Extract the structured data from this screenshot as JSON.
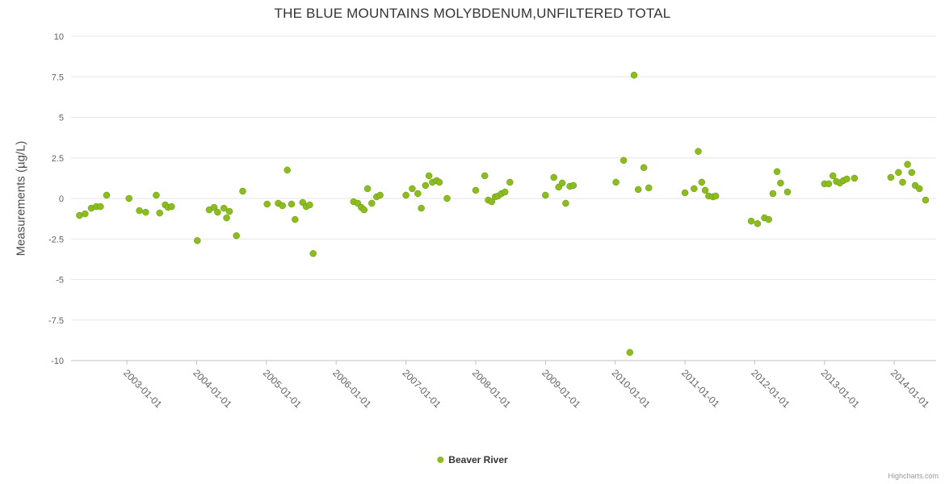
{
  "credits": "Highcharts.com",
  "chart_data": {
    "type": "scatter",
    "title": "THE BLUE MOUNTAINS MOLYBDENUM,UNFILTERED TOTAL",
    "xlabel": "",
    "ylabel": "Measurements (µg/L)",
    "ylim": [
      -10,
      10
    ],
    "y_ticks": [
      10,
      7.5,
      5,
      2.5,
      0,
      -2.5,
      -5,
      -7.5,
      -10
    ],
    "x_tick_labels": [
      "2003-01-01",
      "2004-01-01",
      "2005-01-01",
      "2006-01-01",
      "2007-01-01",
      "2008-01-01",
      "2009-01-01",
      "2010-01-01",
      "2011-01-01",
      "2012-01-01",
      "2013-01-01",
      "2014-01-01"
    ],
    "x_tick_years": [
      2003,
      2004,
      2005,
      2006,
      2007,
      2008,
      2009,
      2010,
      2011,
      2012,
      2013,
      2014
    ],
    "x_range_years": [
      2002.2,
      2014.6
    ],
    "grid": "horizontal",
    "legend": {
      "position": "bottom-center"
    },
    "colors": {
      "point": "#8bbc21",
      "point_border": "#679700",
      "gridline": "#e6e6e6",
      "axis_line": "#c0c0c0",
      "tick_label": "#606060"
    },
    "series": [
      {
        "name": "Beaver River",
        "color": "#8bbc21",
        "points": [
          [
            2002.32,
            -1.05
          ],
          [
            2002.4,
            -0.95
          ],
          [
            2002.49,
            -0.6
          ],
          [
            2002.56,
            -0.5
          ],
          [
            2002.62,
            -0.5
          ],
          [
            2002.71,
            0.2
          ],
          [
            2003.03,
            0.0
          ],
          [
            2003.18,
            -0.75
          ],
          [
            2003.27,
            -0.85
          ],
          [
            2003.42,
            0.2
          ],
          [
            2003.47,
            -0.9
          ],
          [
            2003.55,
            -0.4
          ],
          [
            2003.59,
            -0.55
          ],
          [
            2003.64,
            -0.5
          ],
          [
            2004.01,
            -2.6
          ],
          [
            2004.18,
            -0.7
          ],
          [
            2004.25,
            -0.55
          ],
          [
            2004.3,
            -0.85
          ],
          [
            2004.39,
            -0.6
          ],
          [
            2004.43,
            -1.2
          ],
          [
            2004.47,
            -0.8
          ],
          [
            2004.57,
            -2.3
          ],
          [
            2004.66,
            0.45
          ],
          [
            2005.01,
            -0.35
          ],
          [
            2005.17,
            -0.3
          ],
          [
            2005.23,
            -0.45
          ],
          [
            2005.3,
            1.75
          ],
          [
            2005.36,
            -0.35
          ],
          [
            2005.41,
            -1.3
          ],
          [
            2005.52,
            -0.25
          ],
          [
            2005.57,
            -0.5
          ],
          [
            2005.62,
            -0.4
          ],
          [
            2005.67,
            -3.4
          ],
          [
            2006.25,
            -0.2
          ],
          [
            2006.31,
            -0.3
          ],
          [
            2006.36,
            -0.55
          ],
          [
            2006.4,
            -0.7
          ],
          [
            2006.45,
            0.6
          ],
          [
            2006.51,
            -0.3
          ],
          [
            2006.58,
            0.1
          ],
          [
            2006.63,
            0.2
          ],
          [
            2007.0,
            0.2
          ],
          [
            2007.09,
            0.6
          ],
          [
            2007.17,
            0.3
          ],
          [
            2007.22,
            -0.6
          ],
          [
            2007.28,
            0.8
          ],
          [
            2007.33,
            1.4
          ],
          [
            2007.38,
            1.0
          ],
          [
            2007.44,
            1.1
          ],
          [
            2007.48,
            1.0
          ],
          [
            2007.59,
            0.0
          ],
          [
            2008.0,
            0.5
          ],
          [
            2008.13,
            1.4
          ],
          [
            2008.18,
            -0.1
          ],
          [
            2008.23,
            -0.2
          ],
          [
            2008.28,
            0.1
          ],
          [
            2008.32,
            0.15
          ],
          [
            2008.37,
            0.3
          ],
          [
            2008.42,
            0.4
          ],
          [
            2008.49,
            1.0
          ],
          [
            2009.0,
            0.2
          ],
          [
            2009.12,
            1.3
          ],
          [
            2009.19,
            0.7
          ],
          [
            2009.24,
            0.95
          ],
          [
            2009.29,
            -0.3
          ],
          [
            2009.35,
            0.75
          ],
          [
            2009.4,
            0.8
          ],
          [
            2010.01,
            1.0
          ],
          [
            2010.12,
            2.35
          ],
          [
            2010.21,
            -9.5
          ],
          [
            2010.27,
            7.6
          ],
          [
            2010.33,
            0.55
          ],
          [
            2010.41,
            1.9
          ],
          [
            2010.48,
            0.65
          ],
          [
            2011.0,
            0.35
          ],
          [
            2011.13,
            0.6
          ],
          [
            2011.19,
            2.9
          ],
          [
            2011.24,
            1.0
          ],
          [
            2011.29,
            0.5
          ],
          [
            2011.34,
            0.15
          ],
          [
            2011.4,
            0.1
          ],
          [
            2011.44,
            0.15
          ],
          [
            2011.95,
            -1.4
          ],
          [
            2012.04,
            -1.55
          ],
          [
            2012.14,
            -1.2
          ],
          [
            2012.2,
            -1.3
          ],
          [
            2012.26,
            0.3
          ],
          [
            2012.32,
            1.65
          ],
          [
            2012.37,
            0.95
          ],
          [
            2012.47,
            0.4
          ],
          [
            2013.0,
            0.9
          ],
          [
            2013.06,
            0.9
          ],
          [
            2013.12,
            1.4
          ],
          [
            2013.17,
            1.05
          ],
          [
            2013.22,
            0.95
          ],
          [
            2013.27,
            1.1
          ],
          [
            2013.32,
            1.2
          ],
          [
            2013.43,
            1.25
          ],
          [
            2013.95,
            1.3
          ],
          [
            2014.06,
            1.6
          ],
          [
            2014.12,
            1.0
          ],
          [
            2014.19,
            2.1
          ],
          [
            2014.25,
            1.6
          ],
          [
            2014.3,
            0.8
          ],
          [
            2014.36,
            0.6
          ],
          [
            2014.45,
            -0.1
          ]
        ]
      }
    ]
  }
}
